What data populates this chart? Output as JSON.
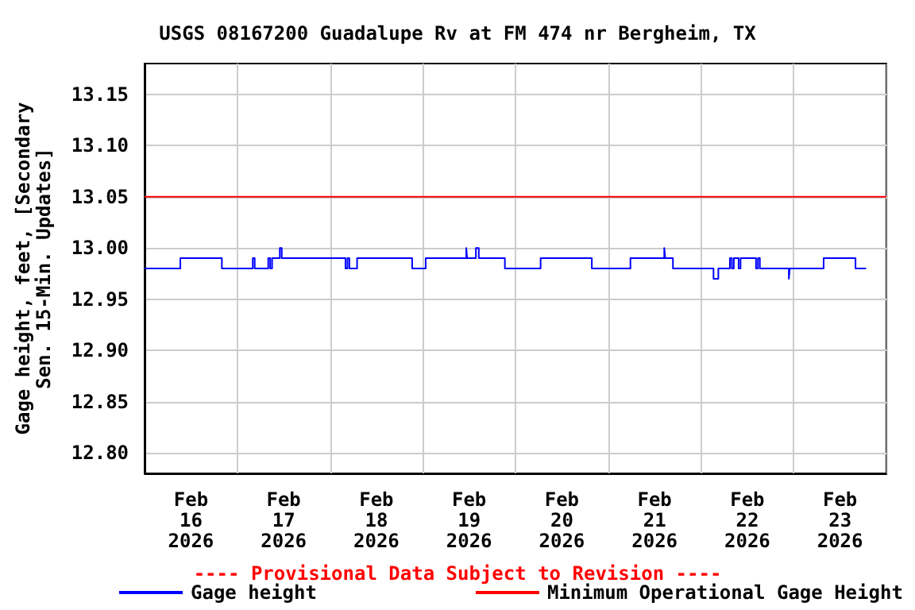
{
  "chart_data": {
    "type": "step",
    "title": "USGS 08167200 Guadalupe Rv at FM 474 nr Bergheim, TX",
    "ylabel": "Gage height, feet, [Secondary Sen. 15-Min. Updates]",
    "annotations": [
      "---- Provisional Data Subject to Revision ----"
    ],
    "series": [
      {
        "name": "Gage height",
        "color": "#0000ff",
        "x": [
          "2026-02-16T00:00",
          "2026-02-16T09:15",
          "2026-02-16T20:00",
          "2026-02-17T04:00",
          "2026-02-17T04:30",
          "2026-02-17T08:00",
          "2026-02-17T08:30",
          "2026-02-17T09:00",
          "2026-02-17T11:00",
          "2026-02-17T11:30",
          "2026-02-18T04:00",
          "2026-02-18T04:30",
          "2026-02-18T05:00",
          "2026-02-18T07:00",
          "2026-02-18T21:15",
          "2026-02-19T00:45",
          "2026-02-19T11:15",
          "2026-02-19T11:30",
          "2026-02-19T13:45",
          "2026-02-19T14:30",
          "2026-02-19T21:15",
          "2026-02-20T06:30",
          "2026-02-20T19:45",
          "2026-02-21T05:45",
          "2026-02-21T14:30",
          "2026-02-21T14:45",
          "2026-02-21T16:45",
          "2026-02-22T03:15",
          "2026-02-22T04:30",
          "2026-02-22T07:30",
          "2026-02-22T08:00",
          "2026-02-22T08:30",
          "2026-02-22T09:45",
          "2026-02-22T10:15",
          "2026-02-22T14:15",
          "2026-02-22T14:45",
          "2026-02-22T15:15",
          "2026-02-22T22:45",
          "2026-02-22T23:00",
          "2026-02-23T07:45",
          "2026-02-23T16:00",
          "2026-02-23T18:45"
        ],
        "values": [
          12.98,
          12.99,
          12.98,
          12.99,
          12.98,
          12.99,
          12.98,
          12.99,
          13.0,
          12.99,
          12.98,
          12.99,
          12.98,
          12.99,
          12.98,
          12.99,
          13.0,
          12.99,
          13.0,
          12.99,
          12.98,
          12.99,
          12.98,
          12.99,
          13.0,
          12.99,
          12.98,
          12.97,
          12.98,
          12.99,
          12.98,
          12.99,
          12.98,
          12.99,
          12.98,
          12.99,
          12.98,
          12.97,
          12.98,
          12.99,
          12.98,
          12.98
        ]
      }
    ],
    "ref_lines": [
      {
        "axis": "y",
        "value": 13.05,
        "label": "Minimum Operational Gage Height",
        "color": "#ff0000"
      }
    ],
    "xlim": [
      "2026-02-16T00:00",
      "2026-02-24T00:00"
    ],
    "xticks": [
      {
        "value": "2026-02-16T00:00",
        "label": null
      },
      {
        "value": "2026-02-16T12:00",
        "label": "Feb\n16\n2026"
      },
      {
        "value": "2026-02-17T00:00",
        "label": null
      },
      {
        "value": "2026-02-17T12:00",
        "label": "Feb\n17\n2026"
      },
      {
        "value": "2026-02-18T00:00",
        "label": null
      },
      {
        "value": "2026-02-18T12:00",
        "label": "Feb\n18\n2026"
      },
      {
        "value": "2026-02-19T00:00",
        "label": null
      },
      {
        "value": "2026-02-19T12:00",
        "label": "Feb\n19\n2026"
      },
      {
        "value": "2026-02-20T00:00",
        "label": null
      },
      {
        "value": "2026-02-20T12:00",
        "label": "Feb\n20\n2026"
      },
      {
        "value": "2026-02-21T00:00",
        "label": null
      },
      {
        "value": "2026-02-21T12:00",
        "label": "Feb\n21\n2026"
      },
      {
        "value": "2026-02-22T00:00",
        "label": null
      },
      {
        "value": "2026-02-22T12:00",
        "label": "Feb\n22\n2026"
      },
      {
        "value": "2026-02-23T00:00",
        "label": null
      },
      {
        "value": "2026-02-23T12:00",
        "label": "Feb\n23\n2026"
      },
      {
        "value": "2026-02-24T00:00",
        "label": null
      }
    ],
    "ylim": [
      12.78,
      13.18
    ],
    "yticks": [
      {
        "value": 12.8,
        "label": "12.80"
      },
      {
        "value": 12.85,
        "label": "12.85"
      },
      {
        "value": 12.9,
        "label": "12.90"
      },
      {
        "value": 12.95,
        "label": "12.95"
      },
      {
        "value": 13.0,
        "label": "13.00"
      },
      {
        "value": 13.05,
        "label": "13.05"
      },
      {
        "value": 13.1,
        "label": "13.10"
      },
      {
        "value": 13.15,
        "label": "13.15"
      }
    ],
    "grid": true,
    "legend": "bottom",
    "marker": "none",
    "line_style": "solid"
  }
}
